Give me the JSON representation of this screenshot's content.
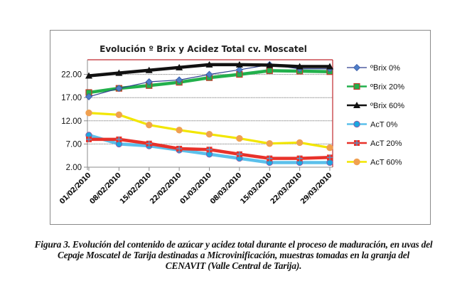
{
  "chart_data": {
    "type": "line",
    "title": "Evolución  º Brix y Acidez Total cv. Moscatel",
    "xlabel": "",
    "ylabel": "",
    "ylim": [
      2.0,
      24.5
    ],
    "yticks": [
      "2.00",
      "7.00",
      "12.00",
      "17.00",
      "22.00"
    ],
    "ytick_values": [
      2,
      7,
      12,
      17,
      22
    ],
    "grid": true,
    "legend_position": "right",
    "categories": [
      "01/02/2010",
      "08/02/2010",
      "15/02/2010",
      "22/02/2010",
      "01/03/2010",
      "08/03/2010",
      "15/03/2010",
      "22/03/2010",
      "29/03/2010"
    ],
    "series": [
      {
        "name": "ºBrix 0%",
        "color": "#2f3f8f",
        "marker_color": "#4f7fc8",
        "marker": "diamond",
        "values": [
          17.2,
          19.0,
          20.4,
          20.8,
          22.0,
          23.0,
          24.1,
          23.2,
          23.2
        ]
      },
      {
        "name": "ºBrix 20%",
        "color": "#22b04c",
        "marker_color": "#22b04c",
        "marker_edge": "#c0392b",
        "marker": "square",
        "values": [
          18.1,
          19.0,
          19.6,
          20.3,
          21.3,
          22.0,
          22.8,
          22.7,
          22.6
        ]
      },
      {
        "name": "ºBrix 60%",
        "color": "#111111",
        "marker_color": "#111111",
        "marker": "triangle",
        "values": [
          21.7,
          22.3,
          22.9,
          23.5,
          24.1,
          24.1,
          24.0,
          23.7,
          23.7
        ]
      },
      {
        "name": "AcT 0%",
        "color": "#5bc0eb",
        "marker_color": "#1aa7e0",
        "marker_edge": "#8e5ba8",
        "marker": "circle",
        "values": [
          8.9,
          7.0,
          6.6,
          5.7,
          4.8,
          3.9,
          3.0,
          3.0,
          3.0
        ]
      },
      {
        "name": "AcT 20%",
        "color": "#e8322a",
        "marker_color": "#e8322a",
        "marker_edge": "#4aa0d8",
        "marker": "cross",
        "values": [
          8.0,
          8.0,
          7.1,
          6.0,
          5.8,
          4.8,
          3.9,
          3.9,
          4.1
        ]
      },
      {
        "name": "AcT 60%",
        "color": "#f2e600",
        "marker_color": "#f0a050",
        "marker": "circle",
        "values": [
          13.7,
          13.3,
          11.1,
          10.0,
          9.1,
          8.2,
          7.1,
          7.3,
          6.2
        ]
      }
    ]
  },
  "caption": {
    "line1": "Figura 3.  Evolución del contenido de azúcar y acidez total durante el proceso  de  maduración, en uvas del",
    "line2": "Cepaje Moscatel de Tarija destinadas a Microvinificación, muestras tomadas en la granja del",
    "line3": "CENAVIT (Valle Central de Tarija)."
  }
}
